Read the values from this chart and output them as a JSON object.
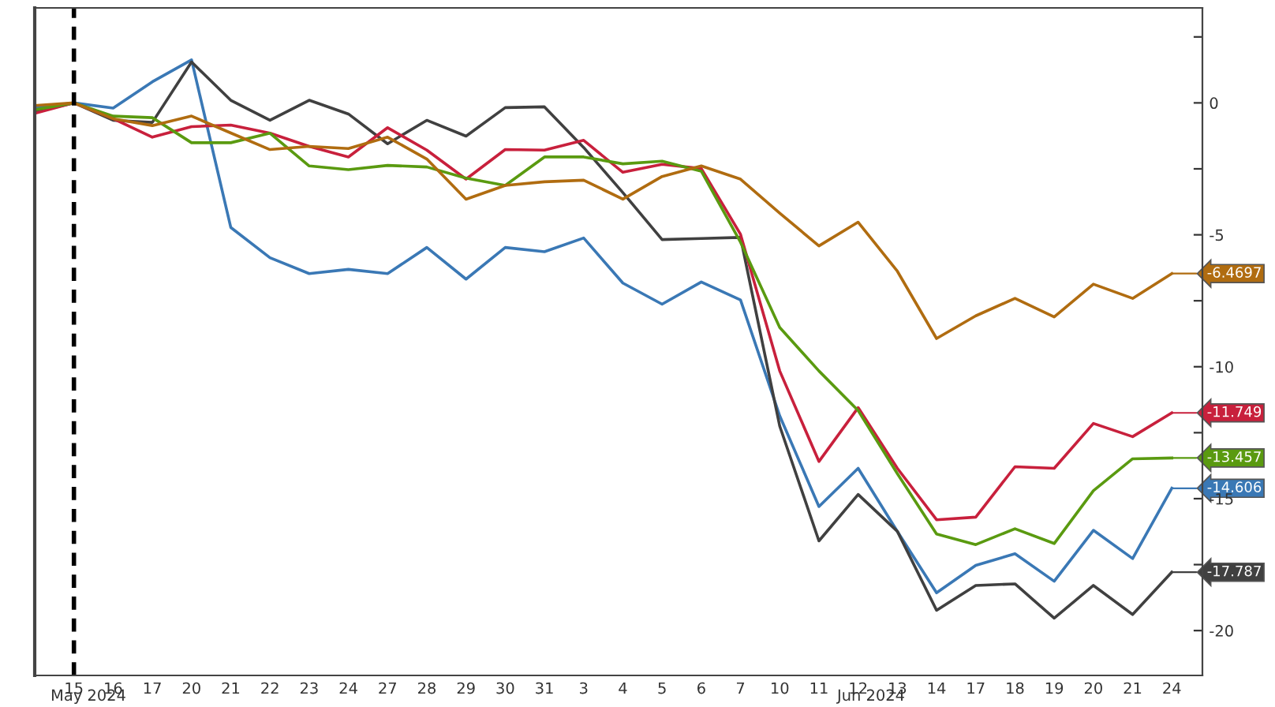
{
  "chart_data": {
    "type": "line",
    "categories": [
      null,
      "15",
      "16",
      "17",
      "20",
      "21",
      "22",
      "23",
      "24",
      "27",
      "28",
      "29",
      "30",
      "31",
      "3",
      "4",
      "5",
      "6",
      "7",
      "10",
      "11",
      "12",
      "13",
      "14",
      "17",
      "18",
      "19",
      "20",
      "21",
      "24"
    ],
    "series": [
      {
        "color": "#3a78b5",
        "values": [
          -0.2,
          0,
          -0.2,
          0.8,
          1.63,
          -4.72,
          -5.87,
          -6.47,
          -6.31,
          -6.47,
          -5.48,
          -6.68,
          -5.48,
          -5.64,
          -5.12,
          -6.83,
          -7.63,
          -6.79,
          -7.47,
          -11.86,
          -15.3,
          -13.85,
          -16.24,
          -18.57,
          -17.53,
          -17.09,
          -18.13,
          -16.2,
          -17.27,
          -14.606
        ],
        "value_labels": [
          null,
          null,
          null,
          null,
          null,
          null,
          null,
          null,
          null,
          null,
          null,
          null,
          null,
          null,
          null,
          null,
          null,
          null,
          null,
          null,
          null,
          null,
          null,
          null,
          null,
          null,
          null,
          null,
          null,
          "-14.606"
        ]
      },
      {
        "color": "#404040",
        "values": [
          -0.34,
          0,
          -0.66,
          -0.74,
          1.55,
          0.1,
          -0.66,
          0.1,
          -0.42,
          -1.55,
          -0.66,
          -1.26,
          -0.18,
          -0.15,
          -1.69,
          -3.4,
          -5.18,
          -5.14,
          -5.1,
          -12.25,
          -16.6,
          -14.84,
          -16.24,
          -19.23,
          -18.29,
          -18.23,
          -19.53,
          -18.29,
          -19.39,
          -17.787
        ],
        "value_labels": [
          null,
          null,
          null,
          null,
          null,
          null,
          null,
          null,
          null,
          null,
          null,
          null,
          null,
          null,
          null,
          null,
          null,
          null,
          null,
          null,
          null,
          null,
          null,
          null,
          null,
          null,
          null,
          null,
          null,
          "-17.787"
        ]
      },
      {
        "color": "#c8203c",
        "values": [
          -0.4,
          0,
          -0.6,
          -1.3,
          -0.9,
          -0.84,
          -1.15,
          -1.65,
          -2.05,
          -0.94,
          -1.79,
          -2.89,
          -1.77,
          -1.79,
          -1.42,
          -2.63,
          -2.33,
          -2.49,
          -4.98,
          -10.16,
          -13.59,
          -11.55,
          -13.85,
          -15.8,
          -15.7,
          -13.79,
          -13.85,
          -12.15,
          -12.65,
          -11.749
        ],
        "value_labels": [
          null,
          null,
          null,
          null,
          null,
          null,
          null,
          null,
          null,
          null,
          null,
          null,
          null,
          null,
          null,
          null,
          null,
          null,
          null,
          null,
          null,
          null,
          null,
          null,
          null,
          null,
          null,
          null,
          null,
          "-11.749"
        ]
      },
      {
        "color": "#5a9a10",
        "values": [
          -0.26,
          0,
          -0.5,
          -0.56,
          -1.51,
          -1.51,
          -1.15,
          -2.39,
          -2.53,
          -2.37,
          -2.43,
          -2.85,
          -3.13,
          -2.05,
          -2.05,
          -2.31,
          -2.21,
          -2.59,
          -5.28,
          -8.51,
          -10.16,
          -11.66,
          -14.05,
          -16.34,
          -16.74,
          -16.14,
          -16.7,
          -14.7,
          -13.49,
          -13.457
        ],
        "value_labels": [
          null,
          null,
          null,
          null,
          null,
          null,
          null,
          null,
          null,
          null,
          null,
          null,
          null,
          null,
          null,
          null,
          null,
          null,
          null,
          null,
          null,
          null,
          null,
          null,
          null,
          null,
          null,
          null,
          null,
          "-13.457"
        ]
      },
      {
        "color": "#b06c10",
        "values": [
          -0.1,
          0,
          -0.6,
          -0.86,
          -0.5,
          -1.14,
          -1.77,
          -1.65,
          -1.73,
          -1.3,
          -2.13,
          -3.65,
          -3.13,
          -2.99,
          -2.93,
          -3.65,
          -2.79,
          -2.39,
          -2.89,
          -4.18,
          -5.42,
          -4.52,
          -6.38,
          -8.93,
          -8.07,
          -7.41,
          -8.11,
          -6.87,
          -7.41,
          -6.4697
        ],
        "value_labels": [
          null,
          null,
          null,
          null,
          null,
          null,
          null,
          null,
          null,
          null,
          null,
          null,
          null,
          null,
          null,
          null,
          null,
          null,
          null,
          null,
          null,
          null,
          null,
          null,
          null,
          null,
          null,
          null,
          null,
          "-6.4697"
        ]
      }
    ],
    "ylim": [
      -21.7,
      3.6
    ],
    "yticks": [
      {
        "value": 2.5,
        "label": null
      },
      0,
      {
        "value": -2.5,
        "label": null
      },
      -5,
      {
        "value": -7.5,
        "label": null
      },
      -10,
      {
        "value": -12.5,
        "label": null
      },
      -15,
      {
        "value": -17.5,
        "label": null
      },
      -20
    ],
    "ref_lines": [
      {
        "axis": "x",
        "value": "15",
        "color": "#000000",
        "line_style": "dashed"
      }
    ],
    "annotations": [
      "May 2024",
      "Jun 2024"
    ],
    "grid": false,
    "marker": "none"
  }
}
